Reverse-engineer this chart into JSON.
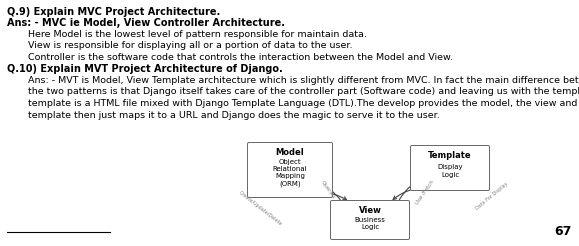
{
  "q9_label": "Q.9) Explain MVC Project Architecture.",
  "ans9_line1": "Ans: - MVC ie Model, View Controller Architecture.",
  "ans9_line2": "Here Model is the lowest level of pattern responsible for maintain data.",
  "ans9_line3": "View is responsible for displaying all or a portion of data to the user.",
  "ans9_line4": "Controller is the software code that controls the interaction between the Model and View.",
  "q10_label": "Q.10) Explain MVT Project Architecture of Django.",
  "ans10_lines": [
    "Ans: - MVT is Model, View Template architecture which is slightly different from MVC. In fact the main difference between",
    "the two patterns is that Django itself takes care of the controller part (Software code) and leaving us with the template. The",
    "template is a HTML file mixed with Django Template Language (DTL).The develop provides the model, the view and the",
    "template then just maps it to a URL and Django does the magic to serve it to the user."
  ],
  "page_number": "67",
  "bg_color": "#ffffff",
  "text_color": "#000000",
  "box_edge_color": "#666666",
  "arrow_color": "#444444",
  "model_label": "Model",
  "model_sub": "Object\nRelational\nMapping\n(ORM)",
  "template_label": "Template",
  "template_sub": "Display\nLogic",
  "view_label": "View",
  "view_sub": "Business\nLogic"
}
